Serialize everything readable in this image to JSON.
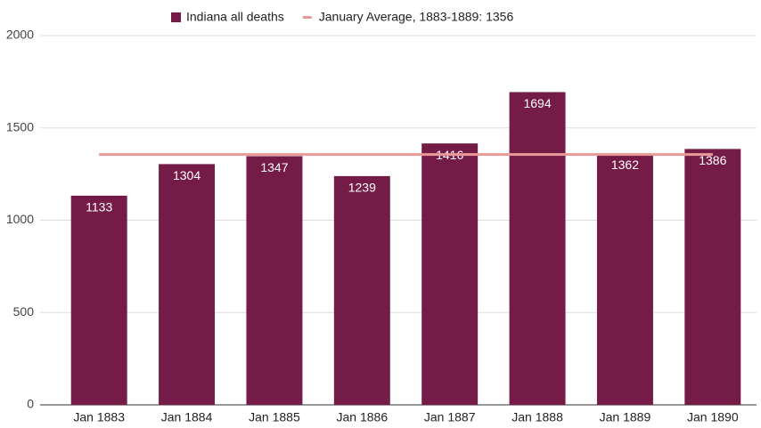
{
  "chart_data": {
    "type": "bar",
    "categories": [
      "Jan 1883",
      "Jan 1884",
      "Jan 1885",
      "Jan 1886",
      "Jan 1887",
      "Jan 1888",
      "Jan 1889",
      "Jan 1890"
    ],
    "series": [
      {
        "name": "Indiana all deaths",
        "type": "bar",
        "color": "#741b47",
        "values": [
          1133,
          1304,
          1347,
          1239,
          1416,
          1694,
          1362,
          1386
        ]
      },
      {
        "name": "January Average, 1883-1889: 1356",
        "type": "line",
        "color": "#ea9999",
        "values": [
          1356,
          1356,
          1356,
          1356,
          1356,
          1356,
          1356,
          1356
        ]
      }
    ],
    "ylim": [
      0,
      2000
    ],
    "yticks": [
      0,
      500,
      1000,
      1500,
      2000
    ],
    "grid": true,
    "legend": "top"
  }
}
